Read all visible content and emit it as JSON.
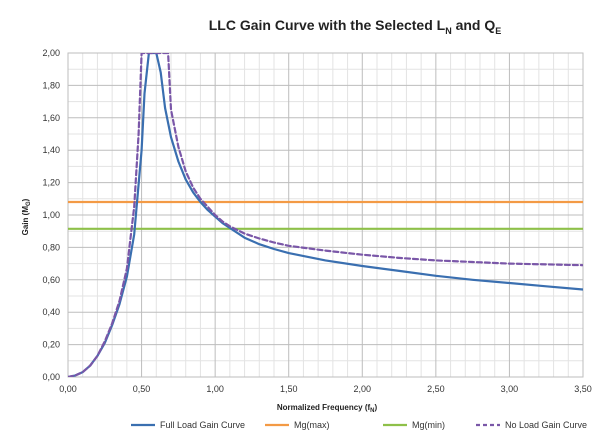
{
  "chart_data": {
    "type": "line",
    "title": {
      "main": "LLC Gain Curve with the Selected L",
      "sub1": "N",
      "mid": " and Q",
      "sub2": "E"
    },
    "xlabel": {
      "main": "Normalized Frequency (f",
      "sub": "N",
      "end": ")"
    },
    "ylabel": {
      "main": "Gain (M",
      "sub": "G",
      "end": ")"
    },
    "xlim": [
      0,
      3.5
    ],
    "ylim": [
      0,
      2
    ],
    "x_ticks": [
      "0,00",
      "0,50",
      "1,00",
      "1,50",
      "2,00",
      "2,50",
      "3,00",
      "3,50"
    ],
    "y_ticks": [
      "0,00",
      "0,20",
      "0,40",
      "0,60",
      "0,80",
      "1,00",
      "1,20",
      "1,40",
      "1,60",
      "1,80",
      "2,00"
    ],
    "grid": true,
    "legend_position": "bottom",
    "series": [
      {
        "name": "Full Load Gain Curve",
        "color": "#3a6fb0",
        "style": "solid",
        "x": [
          0.0,
          0.05,
          0.1,
          0.15,
          0.2,
          0.25,
          0.3,
          0.35,
          0.4,
          0.45,
          0.5,
          0.52,
          0.55,
          0.6,
          0.63,
          0.66,
          0.7,
          0.75,
          0.8,
          0.85,
          0.9,
          0.95,
          1.0,
          1.05,
          1.1,
          1.2,
          1.3,
          1.4,
          1.5,
          1.75,
          2.0,
          2.25,
          2.5,
          2.75,
          3.0,
          3.25,
          3.5
        ],
        "y": [
          0.0,
          0.01,
          0.03,
          0.07,
          0.13,
          0.21,
          0.32,
          0.45,
          0.62,
          0.88,
          1.4,
          1.75,
          2.0,
          2.0,
          1.88,
          1.66,
          1.48,
          1.33,
          1.22,
          1.14,
          1.08,
          1.03,
          0.99,
          0.95,
          0.92,
          0.86,
          0.82,
          0.79,
          0.765,
          0.72,
          0.685,
          0.655,
          0.625,
          0.6,
          0.58,
          0.56,
          0.54
        ]
      },
      {
        "name": "Mg(max)",
        "color": "#f39a45",
        "style": "solid",
        "x": [
          0.0,
          3.5
        ],
        "y": [
          1.08,
          1.08
        ]
      },
      {
        "name": "Mg(min)",
        "color": "#8ec049",
        "style": "solid",
        "x": [
          0.0,
          3.5
        ],
        "y": [
          0.915,
          0.915
        ]
      },
      {
        "name": "No Load Gain Curve",
        "color": "#7a57a8",
        "style": "dashed",
        "x": [
          0.0,
          0.05,
          0.1,
          0.15,
          0.2,
          0.25,
          0.3,
          0.35,
          0.4,
          0.45,
          0.48,
          0.5,
          0.68,
          0.7,
          0.75,
          0.8,
          0.85,
          0.9,
          0.95,
          1.0,
          1.05,
          1.1,
          1.2,
          1.3,
          1.4,
          1.5,
          1.75,
          2.0,
          2.25,
          2.5,
          2.75,
          3.0,
          3.25,
          3.5
        ],
        "y": [
          0.0,
          0.01,
          0.03,
          0.07,
          0.13,
          0.22,
          0.33,
          0.47,
          0.67,
          1.05,
          1.5,
          2.0,
          2.0,
          1.65,
          1.42,
          1.27,
          1.17,
          1.1,
          1.05,
          1.0,
          0.96,
          0.93,
          0.885,
          0.855,
          0.83,
          0.81,
          0.78,
          0.755,
          0.735,
          0.72,
          0.71,
          0.7,
          0.695,
          0.69
        ]
      }
    ]
  }
}
